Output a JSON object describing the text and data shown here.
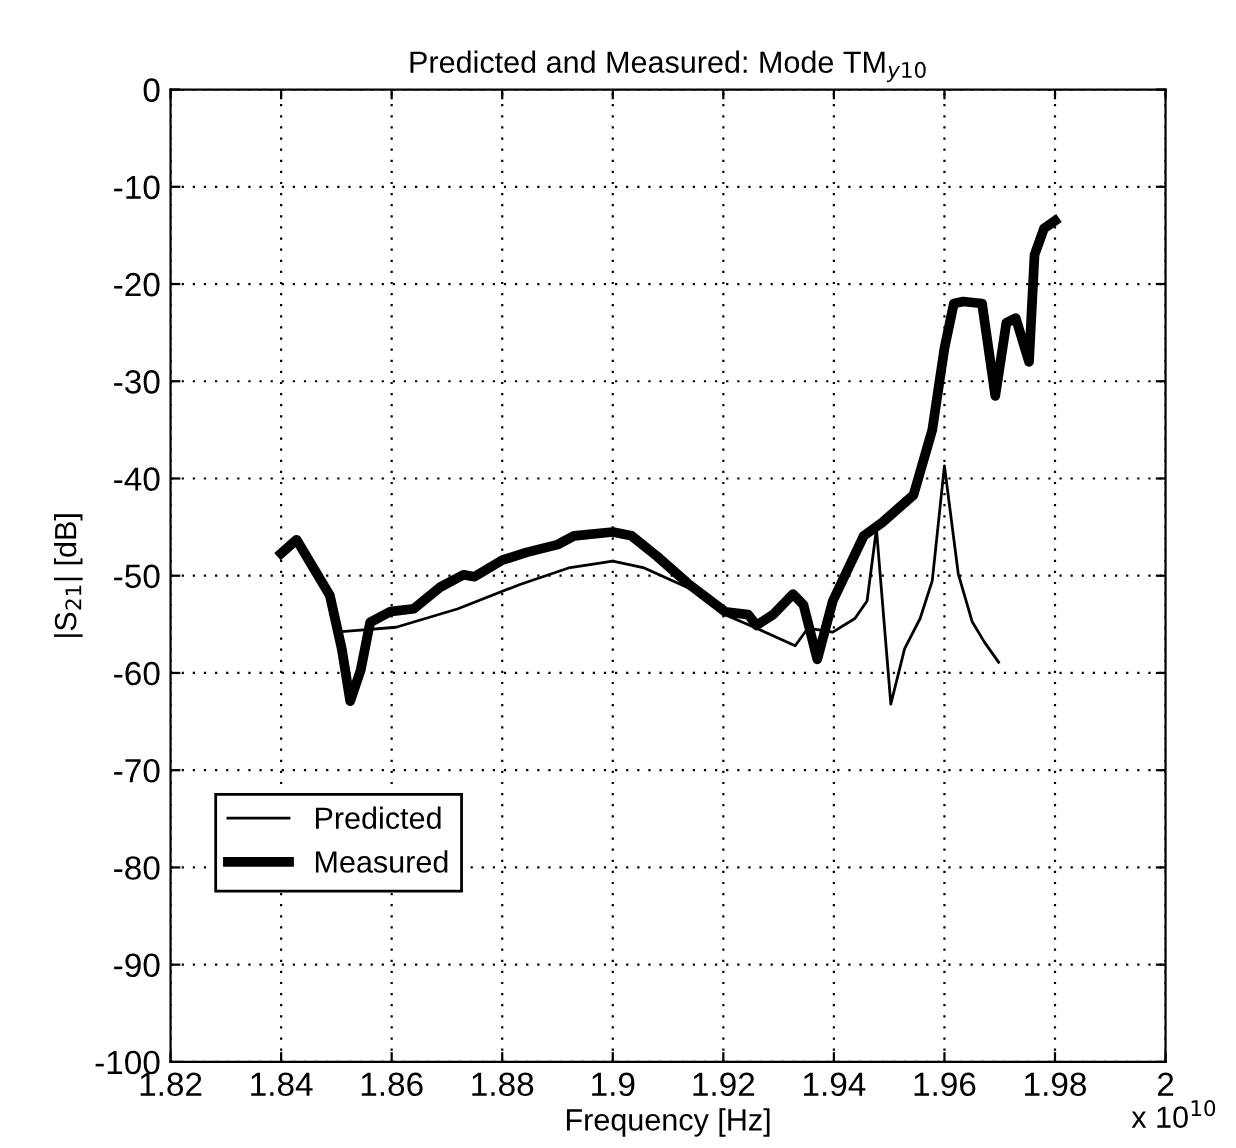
{
  "chart_data": {
    "type": "line",
    "title": "Predicted and Measured: Mode TM$_{y10}$",
    "xlabel": "Frequency [Hz]",
    "ylabel": "|S$_{21}$| [dB]",
    "annotations": [
      "x 10$^{10}$"
    ],
    "xlim": [
      1.82,
      2
    ],
    "xticks": [
      1.82,
      1.84,
      1.86,
      1.88,
      1.9,
      1.92,
      1.94,
      1.96,
      1.98,
      2
    ],
    "ylim": [
      -100,
      0
    ],
    "yticks": [
      -100,
      -90,
      -80,
      -70,
      -60,
      -50,
      -40,
      -30,
      -20,
      -10,
      0
    ],
    "grid": true,
    "legend": "bottom left",
    "marker": "none",
    "line_style": "solid",
    "series": [
      {
        "name": "Predicted",
        "color": "#000000",
        "x": [
          1.85,
          1.8608,
          1.872,
          1.8832,
          1.892,
          1.9,
          1.9057,
          1.915,
          1.9203,
          1.926,
          1.933,
          1.9353,
          1.9398,
          1.9438,
          1.946,
          1.9477,
          1.9503,
          1.9528,
          1.9556,
          1.9578,
          1.96,
          1.9625,
          1.965,
          1.9672,
          1.9698
        ],
        "values": [
          -55.8,
          -55.3,
          -53.4,
          -50.9,
          -49.2,
          -48.5,
          -49.2,
          -51.6,
          -54,
          -55.4,
          -57.2,
          -55.4,
          -55.8,
          -54.4,
          -52.6,
          -45.2,
          -63.2,
          -57.5,
          -54.4,
          -50.5,
          -38.7,
          -49.8,
          -54.7,
          -56.8,
          -58.9
        ]
      },
      {
        "name": "Measured",
        "color": "#000000",
        "x": [
          1.84,
          1.8428,
          1.8488,
          1.851,
          1.8525,
          1.8544,
          1.8561,
          1.8597,
          1.864,
          1.8687,
          1.873,
          1.875,
          1.88,
          1.8844,
          1.89,
          1.893,
          1.9,
          1.9034,
          1.908,
          1.9136,
          1.9203,
          1.9245,
          1.926,
          1.929,
          1.9326,
          1.9345,
          1.937,
          1.9398,
          1.9454,
          1.9488,
          1.9544,
          1.9578,
          1.96,
          1.9617,
          1.9634,
          1.9668,
          1.9692,
          1.9712,
          1.9729,
          1.9753,
          1.9763,
          1.978,
          1.98
        ],
        "values": [
          -47.7,
          -46.3,
          -52,
          -57.6,
          -62.9,
          -59.7,
          -54.8,
          -53.7,
          -53.4,
          -51.2,
          -49.9,
          -50.1,
          -48.4,
          -47.6,
          -46.8,
          -45.9,
          -45.5,
          -45.9,
          -48,
          -50.8,
          -53.7,
          -54,
          -55.1,
          -54,
          -51.9,
          -53,
          -58.6,
          -52.6,
          -45.9,
          -44.5,
          -41.7,
          -35,
          -26.6,
          -22,
          -21.8,
          -22,
          -31.5,
          -24,
          -23.5,
          -28,
          -17,
          -14.3,
          -13.5
        ]
      }
    ]
  }
}
